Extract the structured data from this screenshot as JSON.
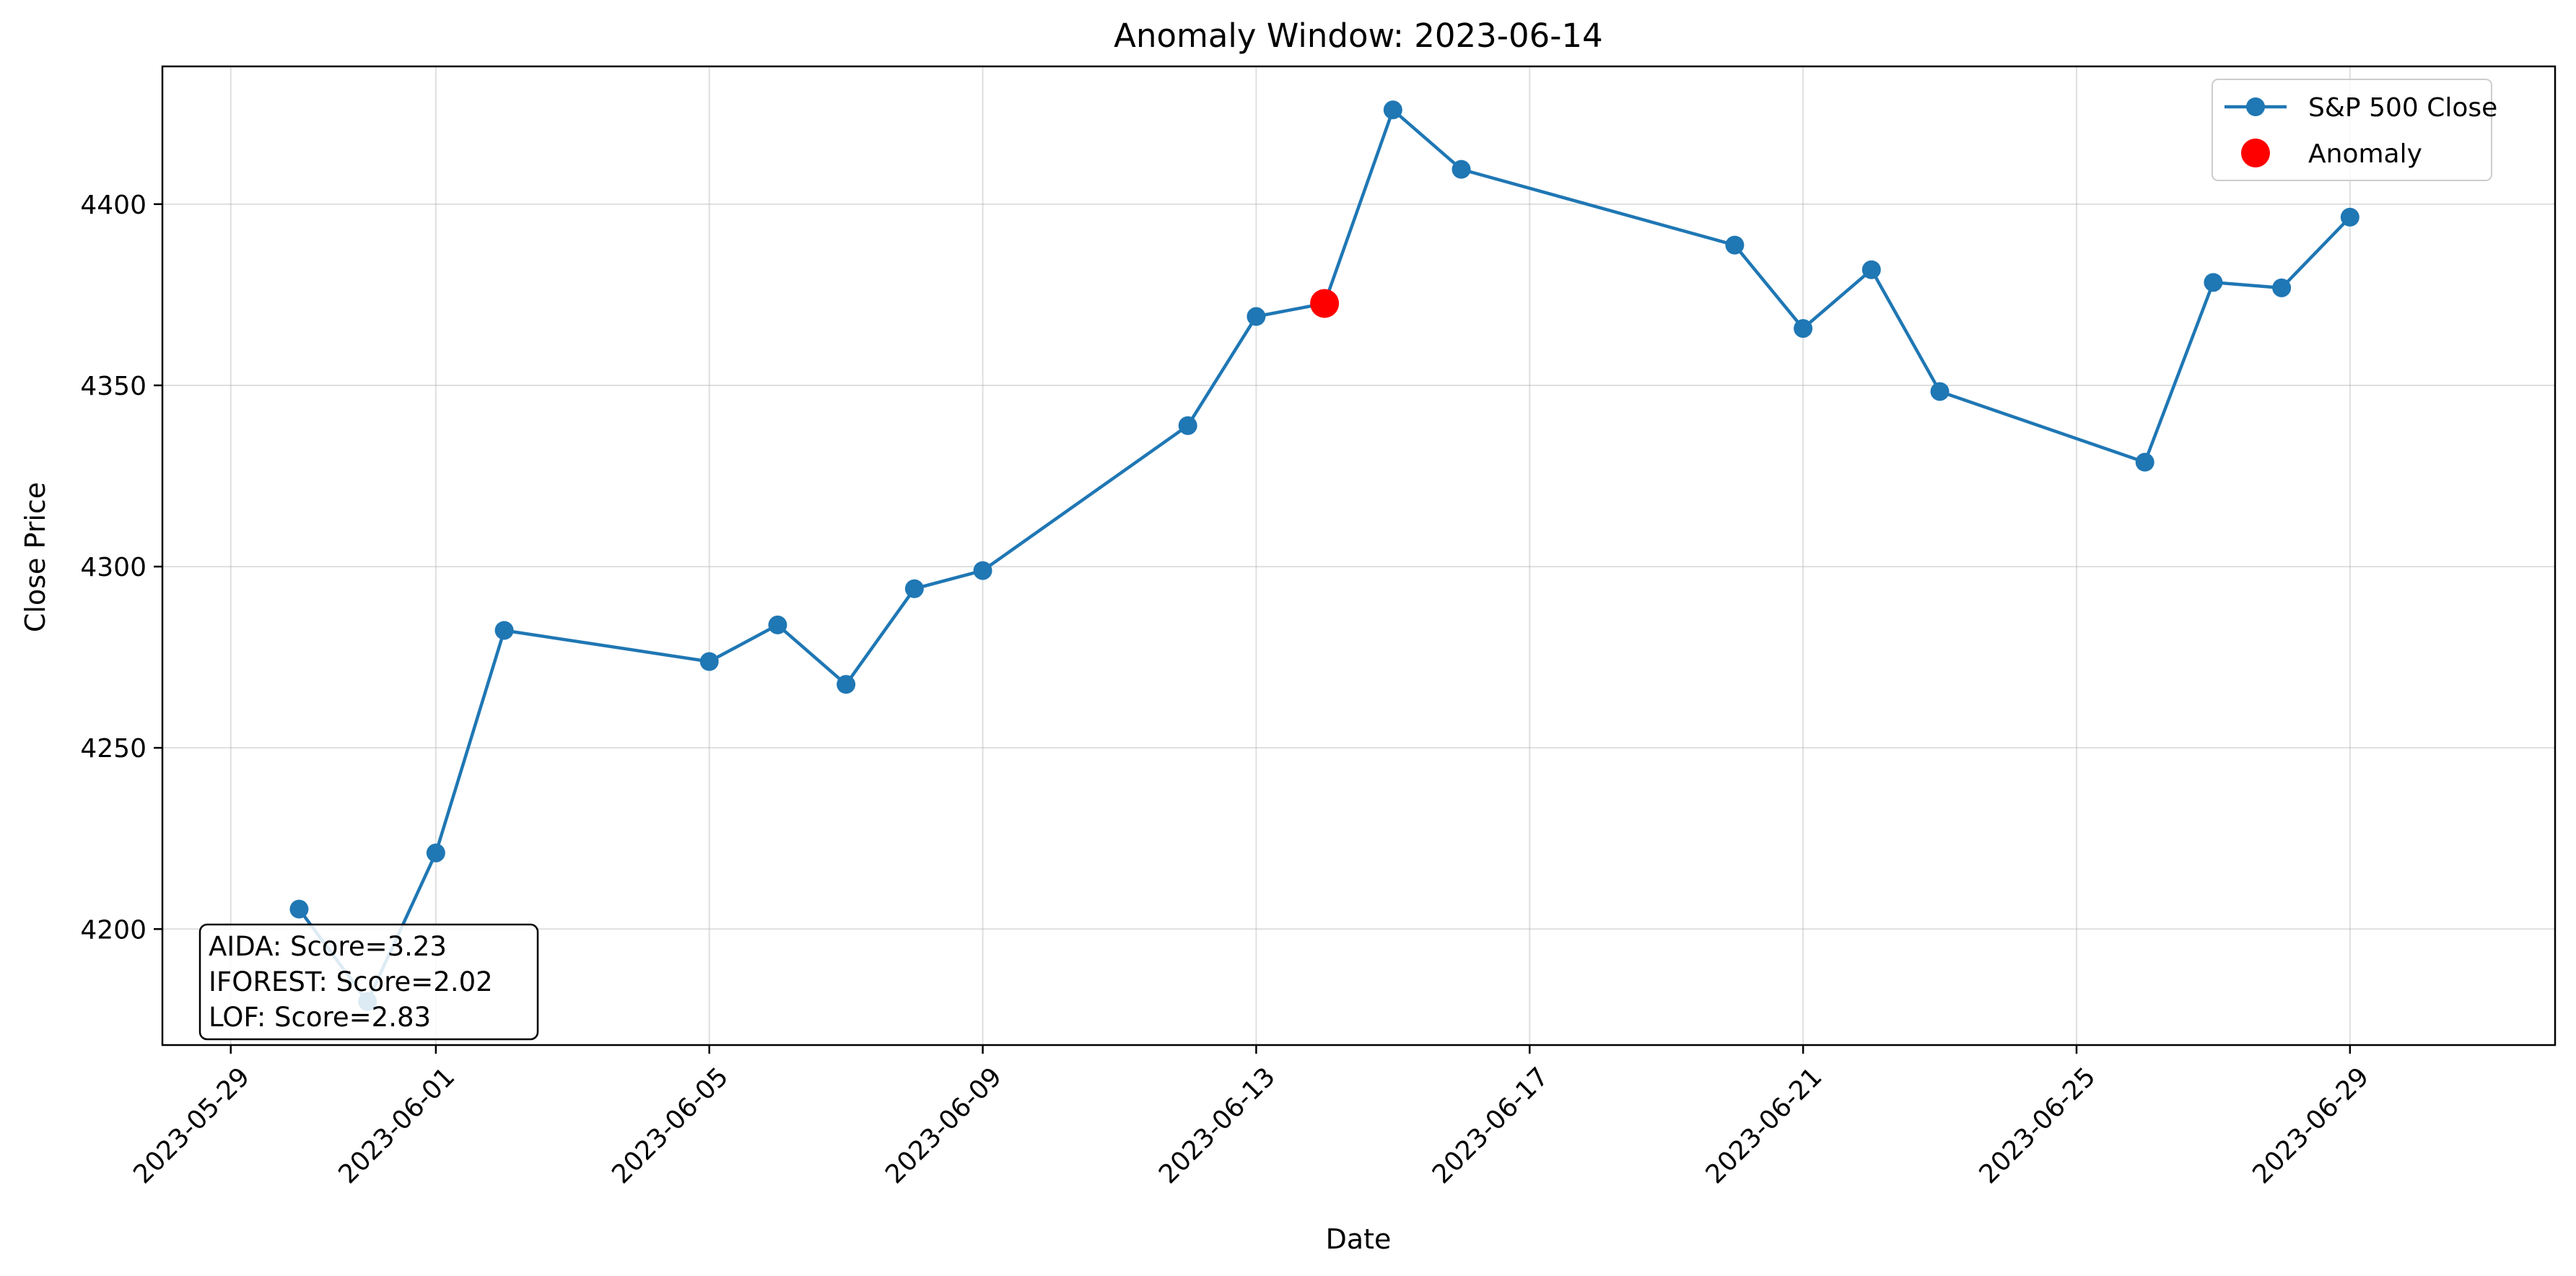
{
  "chart_data": {
    "type": "line",
    "title": "Anomaly Window: 2023-06-14",
    "xlabel": "Date",
    "ylabel": "Close Price",
    "xlim": [
      "2023-05-28",
      "2023-07-02"
    ],
    "ylim": [
      4168,
      4438
    ],
    "grid": true,
    "legend_position": "top-right",
    "x_ticks": [
      "2023-05-29",
      "2023-06-01",
      "2023-06-05",
      "2023-06-09",
      "2023-06-13",
      "2023-06-17",
      "2023-06-21",
      "2023-06-25",
      "2023-06-29"
    ],
    "y_ticks": [
      4200,
      4250,
      4300,
      4350,
      4400
    ],
    "series": [
      {
        "name": "S&P 500 Close",
        "color": "#1f77b4",
        "marker": "circle",
        "x": [
          "2023-05-30",
          "2023-05-31",
          "2023-06-01",
          "2023-06-02",
          "2023-06-05",
          "2023-06-06",
          "2023-06-07",
          "2023-06-08",
          "2023-06-09",
          "2023-06-12",
          "2023-06-13",
          "2023-06-14",
          "2023-06-15",
          "2023-06-16",
          "2023-06-20",
          "2023-06-21",
          "2023-06-22",
          "2023-06-23",
          "2023-06-26",
          "2023-06-27",
          "2023-06-28",
          "2023-06-29"
        ],
        "y": [
          4205.5,
          4180.0,
          4221.0,
          4282.4,
          4273.8,
          4283.9,
          4267.5,
          4293.9,
          4298.9,
          4338.9,
          4369.0,
          4372.6,
          4426.0,
          4409.6,
          4388.7,
          4365.7,
          4381.9,
          4348.3,
          4328.8,
          4378.4,
          4376.9,
          4396.4
        ]
      },
      {
        "name": "Anomaly",
        "color": "#ff0000",
        "marker": "circle",
        "x": [
          "2023-06-14"
        ],
        "y": [
          4372.6
        ]
      }
    ],
    "annotation": {
      "lines": [
        "AIDA: Score=3.23",
        "IFOREST: Score=2.02",
        "LOF: Score=2.83"
      ],
      "position": "bottom-left"
    }
  }
}
